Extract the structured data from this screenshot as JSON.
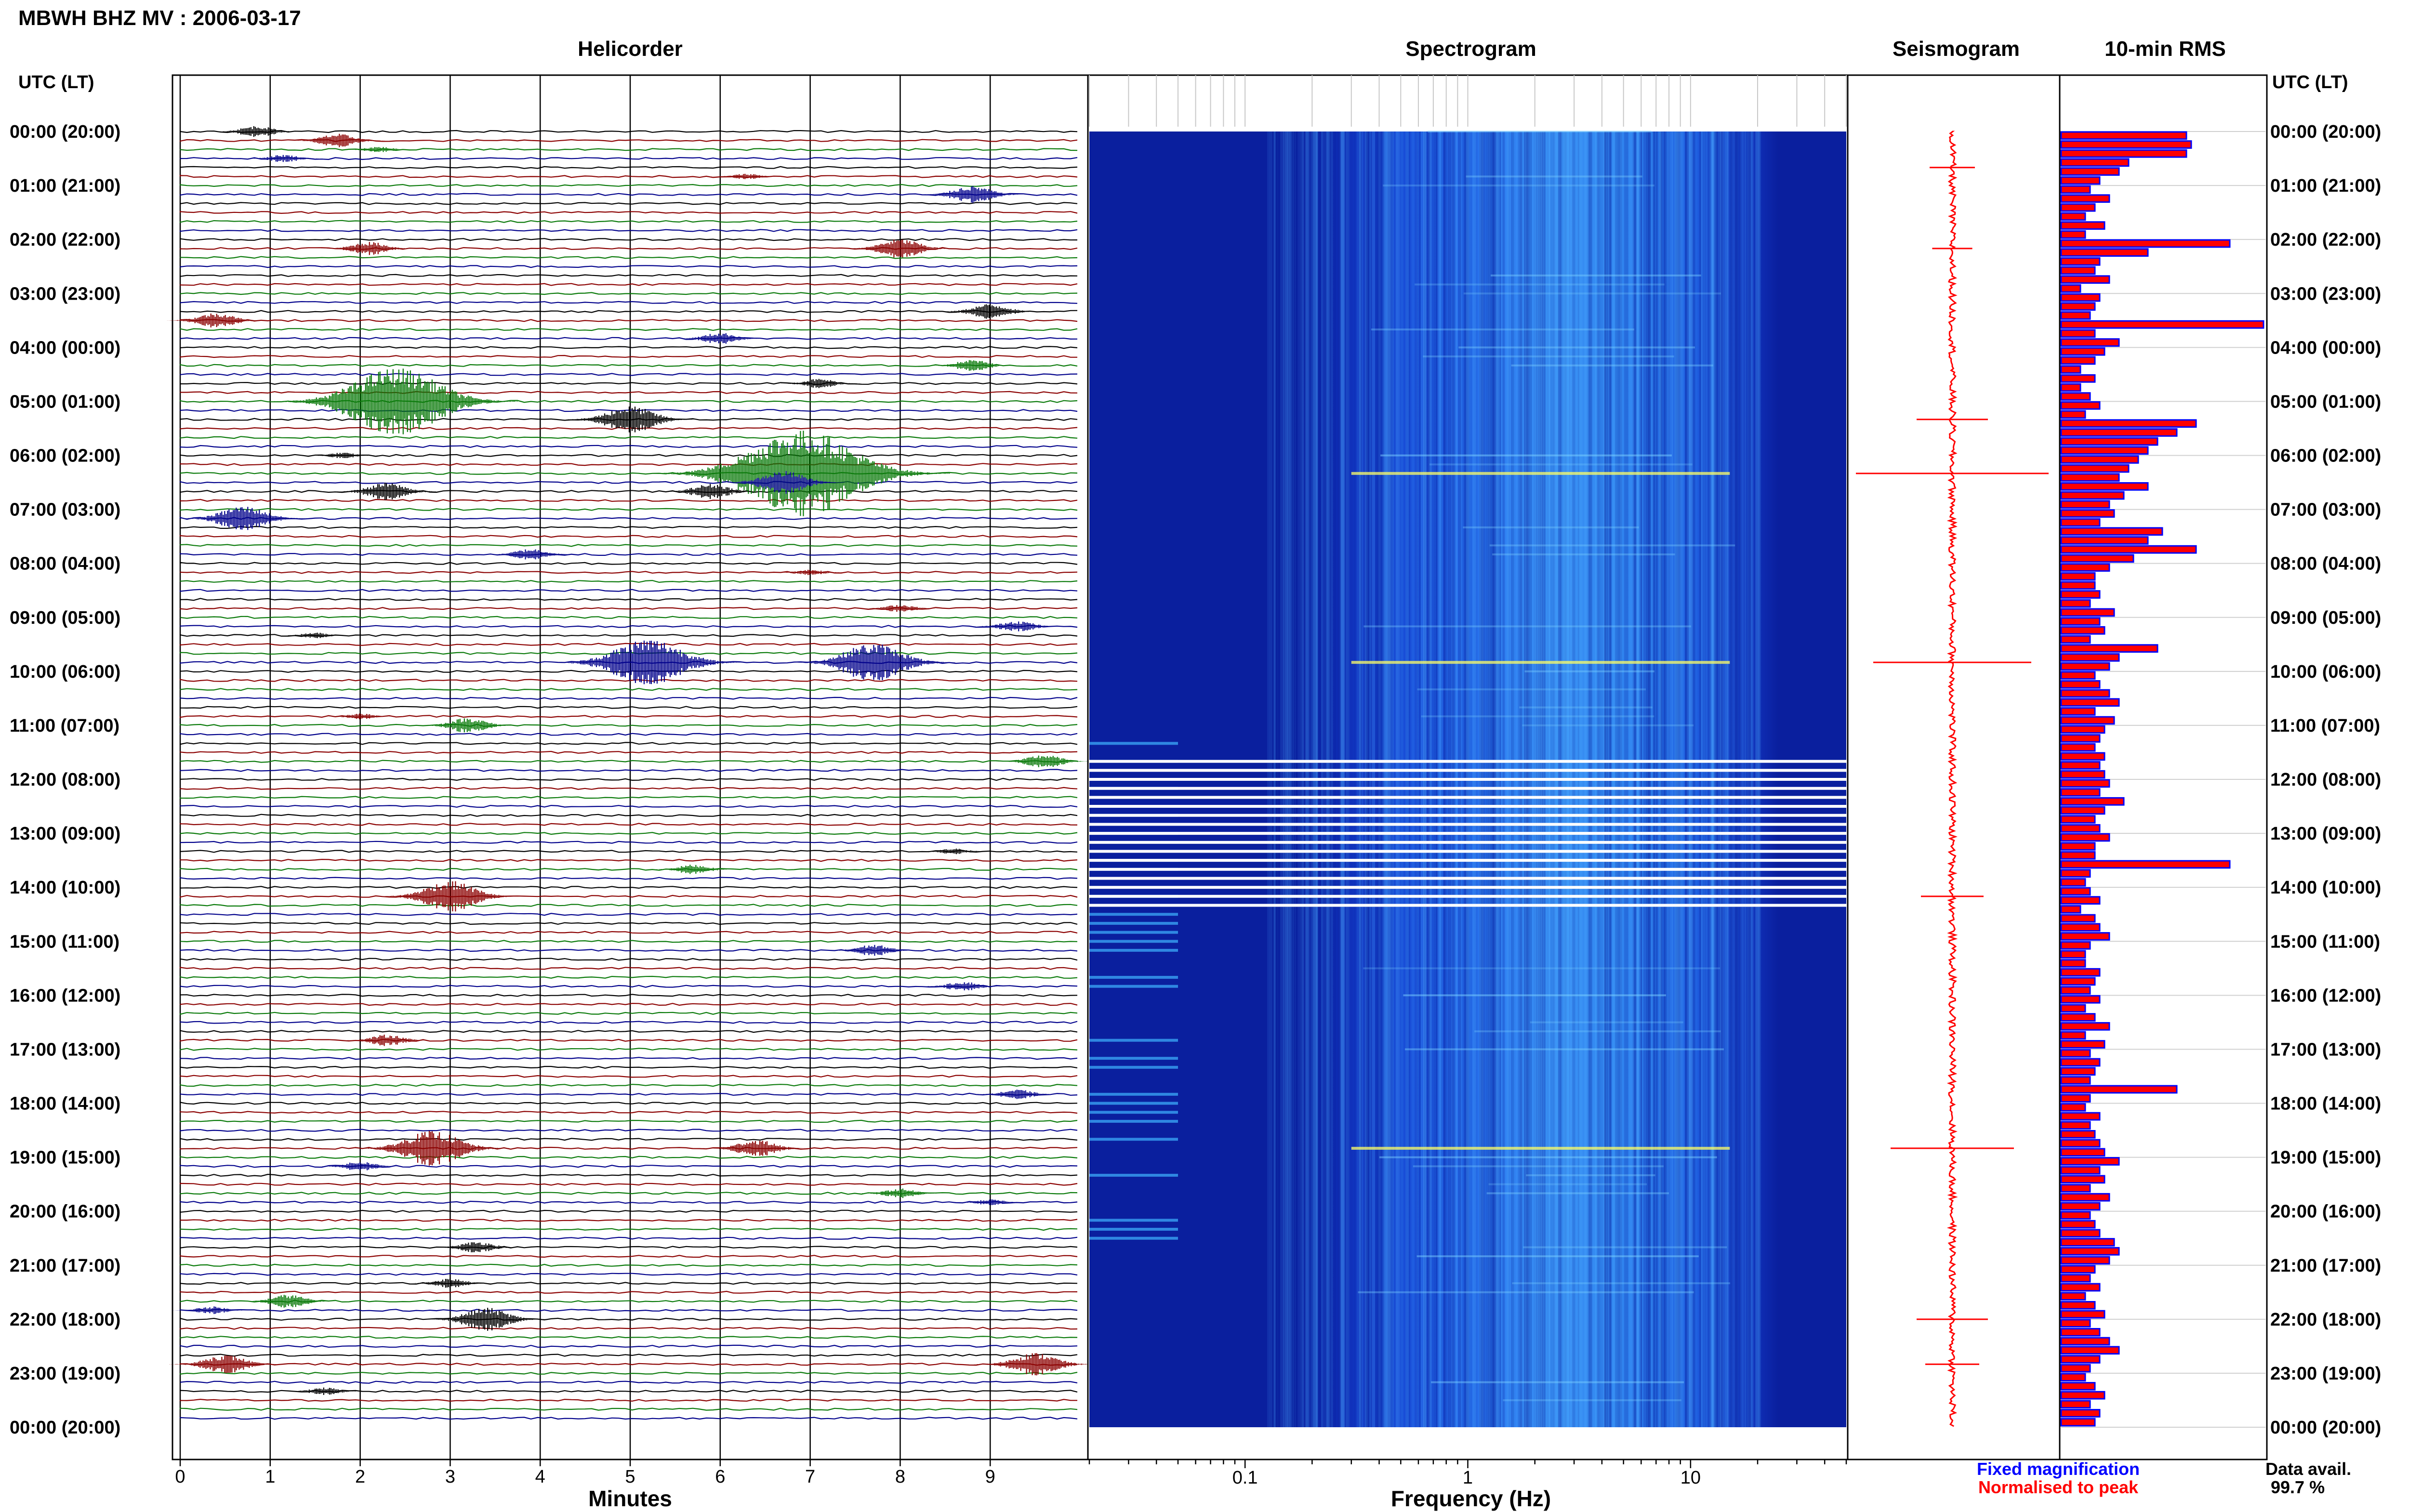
{
  "header": {
    "title": "MBWH BHZ MV : 2006-03-17"
  },
  "panels": {
    "helicorder": "Helicorder",
    "spectrogram": "Spectrogram",
    "seismogram": "Seismogram",
    "rms": "10-min RMS"
  },
  "axis_labels": {
    "left_time": "UTC (LT)",
    "right_time": "UTC (LT)",
    "minutes": "Minutes",
    "frequency": "Frequency (Hz)"
  },
  "legend": {
    "fixed": "Fixed magnification",
    "normalised": "Normalised to peak",
    "fixed_color": "#0000ff",
    "normalised_color": "#ff0000"
  },
  "availability": {
    "label": "Data avail.",
    "value": "99.7 %"
  },
  "colors": {
    "trace_cycle": [
      "#000000",
      "#8b0000",
      "#0a7a0a",
      "#00008b"
    ],
    "spectrogram_background": "#0a1f9e",
    "seismogram_trace": "#ff0000",
    "rms_fill": "#ff0000",
    "rms_edge": "#0000ff"
  },
  "chart_data": [
    {
      "type": "line",
      "name": "helicorder",
      "title": "Helicorder",
      "xlabel": "Minutes",
      "xlim": [
        0,
        10
      ],
      "x_ticks": [
        "0",
        "1",
        "2",
        "3",
        "4",
        "5",
        "6",
        "7",
        "8",
        "9"
      ],
      "time_labels": [
        "00:00 (20:00)",
        "01:00 (21:00)",
        "02:00 (22:00)",
        "03:00 (23:00)",
        "04:00 (00:00)",
        "05:00 (01:00)",
        "06:00 (02:00)",
        "07:00 (03:00)",
        "08:00 (04:00)",
        "09:00 (05:00)",
        "10:00 (06:00)",
        "11:00 (07:00)",
        "12:00 (08:00)",
        "13:00 (09:00)",
        "14:00 (10:00)",
        "15:00 (11:00)",
        "16:00 (12:00)",
        "17:00 (13:00)",
        "18:00 (14:00)",
        "19:00 (15:00)",
        "20:00 (16:00)",
        "21:00 (17:00)",
        "22:00 (18:00)",
        "23:00 (19:00)",
        "00:00 (20:00)"
      ],
      "rows_per_day": 144,
      "events": [
        {
          "row": 0,
          "minute": 0.85,
          "amplitude": 0.6
        },
        {
          "row": 1,
          "minute": 1.75,
          "amplitude": 0.7
        },
        {
          "row": 2,
          "minute": 2.2,
          "amplitude": 0.3
        },
        {
          "row": 3,
          "minute": 1.15,
          "amplitude": 0.4
        },
        {
          "row": 5,
          "minute": 6.3,
          "amplitude": 0.3
        },
        {
          "row": 7,
          "minute": 8.8,
          "amplitude": 0.9
        },
        {
          "row": 13,
          "minute": 8.0,
          "amplitude": 1.0
        },
        {
          "row": 13,
          "minute": 2.1,
          "amplitude": 0.7
        },
        {
          "row": 20,
          "minute": 9.0,
          "amplitude": 0.8
        },
        {
          "row": 21,
          "minute": 0.4,
          "amplitude": 0.8
        },
        {
          "row": 23,
          "minute": 6.0,
          "amplitude": 0.6
        },
        {
          "row": 26,
          "minute": 8.8,
          "amplitude": 0.6
        },
        {
          "row": 28,
          "minute": 7.1,
          "amplitude": 0.5
        },
        {
          "row": 30,
          "minute": 2.4,
          "amplitude": 3.5
        },
        {
          "row": 32,
          "minute": 5.0,
          "amplitude": 1.4
        },
        {
          "row": 36,
          "minute": 1.8,
          "amplitude": 0.3
        },
        {
          "row": 38,
          "minute": 6.9,
          "amplitude": 4.5
        },
        {
          "row": 39,
          "minute": 6.7,
          "amplitude": 1.2
        },
        {
          "row": 40,
          "minute": 2.3,
          "amplitude": 0.9
        },
        {
          "row": 40,
          "minute": 5.9,
          "amplitude": 0.8
        },
        {
          "row": 43,
          "minute": 0.7,
          "amplitude": 1.3
        },
        {
          "row": 47,
          "minute": 3.9,
          "amplitude": 0.6
        },
        {
          "row": 49,
          "minute": 7.0,
          "amplitude": 0.3
        },
        {
          "row": 53,
          "minute": 8.0,
          "amplitude": 0.4
        },
        {
          "row": 55,
          "minute": 9.3,
          "amplitude": 0.6
        },
        {
          "row": 56,
          "minute": 1.5,
          "amplitude": 0.3
        },
        {
          "row": 59,
          "minute": 5.2,
          "amplitude": 2.5
        },
        {
          "row": 59,
          "minute": 7.7,
          "amplitude": 2.0
        },
        {
          "row": 65,
          "minute": 2.0,
          "amplitude": 0.3
        },
        {
          "row": 66,
          "minute": 3.2,
          "amplitude": 0.8
        },
        {
          "row": 70,
          "minute": 9.6,
          "amplitude": 0.7
        },
        {
          "row": 80,
          "minute": 8.6,
          "amplitude": 0.3
        },
        {
          "row": 82,
          "minute": 5.7,
          "amplitude": 0.5
        },
        {
          "row": 85,
          "minute": 3.0,
          "amplitude": 1.6
        },
        {
          "row": 91,
          "minute": 7.7,
          "amplitude": 0.6
        },
        {
          "row": 95,
          "minute": 8.7,
          "amplitude": 0.5
        },
        {
          "row": 101,
          "minute": 2.3,
          "amplitude": 0.6
        },
        {
          "row": 107,
          "minute": 9.3,
          "amplitude": 0.5
        },
        {
          "row": 113,
          "minute": 2.8,
          "amplitude": 1.8
        },
        {
          "row": 113,
          "minute": 6.4,
          "amplitude": 0.9
        },
        {
          "row": 115,
          "minute": 2.0,
          "amplitude": 0.5
        },
        {
          "row": 118,
          "minute": 8.0,
          "amplitude": 0.5
        },
        {
          "row": 119,
          "minute": 9.0,
          "amplitude": 0.3
        },
        {
          "row": 124,
          "minute": 3.3,
          "amplitude": 0.6
        },
        {
          "row": 128,
          "minute": 3.0,
          "amplitude": 0.5
        },
        {
          "row": 130,
          "minute": 1.2,
          "amplitude": 0.7
        },
        {
          "row": 131,
          "minute": 0.35,
          "amplitude": 0.4
        },
        {
          "row": 132,
          "minute": 3.4,
          "amplitude": 1.2
        },
        {
          "row": 137,
          "minute": 0.5,
          "amplitude": 1.0
        },
        {
          "row": 137,
          "minute": 9.5,
          "amplitude": 1.2
        },
        {
          "row": 140,
          "minute": 1.6,
          "amplitude": 0.4
        }
      ]
    },
    {
      "type": "heatmap",
      "name": "spectrogram",
      "title": "Spectrogram",
      "xlabel": "Frequency (Hz)",
      "xscale": "log",
      "xlim": [
        0.02,
        50
      ],
      "x_ticks": [
        "0.1",
        "1",
        "10"
      ],
      "gap_rows": [
        70,
        71,
        72,
        73,
        74,
        75,
        76,
        77,
        78,
        79,
        80,
        81,
        82,
        83,
        84,
        85,
        86
      ]
    },
    {
      "type": "line",
      "name": "seismogram",
      "title": "Seismogram",
      "spikes": [
        {
          "row": 4,
          "amplitude": 0.15
        },
        {
          "row": 13,
          "amplitude": 0.12
        },
        {
          "row": 32,
          "amplitude": 0.3
        },
        {
          "row": 38,
          "amplitude": 1.0
        },
        {
          "row": 59,
          "amplitude": 0.8
        },
        {
          "row": 85,
          "amplitude": 0.25
        },
        {
          "row": 113,
          "amplitude": 0.6
        },
        {
          "row": 132,
          "amplitude": 0.3
        },
        {
          "row": 137,
          "amplitude": 0.2
        }
      ]
    },
    {
      "type": "bar",
      "name": "rms",
      "title": "10-min RMS",
      "orientation": "horizontal",
      "values": [
        0.26,
        0.27,
        0.26,
        0.14,
        0.12,
        0.08,
        0.06,
        0.1,
        0.07,
        0.05,
        0.09,
        0.05,
        0.35,
        0.18,
        0.08,
        0.07,
        0.1,
        0.04,
        0.08,
        0.07,
        0.06,
        0.42,
        0.07,
        0.12,
        0.09,
        0.07,
        0.04,
        0.07,
        0.04,
        0.06,
        0.08,
        0.05,
        0.28,
        0.24,
        0.2,
        0.18,
        0.16,
        0.14,
        0.12,
        0.18,
        0.13,
        0.1,
        0.11,
        0.08,
        0.21,
        0.18,
        0.28,
        0.15,
        0.1,
        0.07,
        0.07,
        0.08,
        0.06,
        0.11,
        0.08,
        0.09,
        0.06,
        0.2,
        0.12,
        0.1,
        0.07,
        0.08,
        0.1,
        0.12,
        0.07,
        0.11,
        0.09,
        0.08,
        0.07,
        0.09,
        0.08,
        0.09,
        0.1,
        0.08,
        0.13,
        0.09,
        0.07,
        0.08,
        0.1,
        0.07,
        0.07,
        0.35,
        0.06,
        0.05,
        0.06,
        0.08,
        0.04,
        0.07,
        0.08,
        0.1,
        0.06,
        0.05,
        0.05,
        0.08,
        0.07,
        0.06,
        0.08,
        0.05,
        0.07,
        0.1,
        0.05,
        0.09,
        0.06,
        0.08,
        0.07,
        0.06,
        0.24,
        0.06,
        0.05,
        0.08,
        0.06,
        0.07,
        0.08,
        0.09,
        0.12,
        0.08,
        0.09,
        0.06,
        0.1,
        0.08,
        0.06,
        0.07,
        0.08,
        0.11,
        0.12,
        0.1,
        0.07,
        0.06,
        0.08,
        0.05,
        0.07,
        0.09,
        0.06,
        0.08,
        0.1,
        0.12,
        0.08,
        0.06,
        0.05,
        0.07,
        0.09,
        0.06,
        0.08,
        0.07
      ]
    }
  ]
}
